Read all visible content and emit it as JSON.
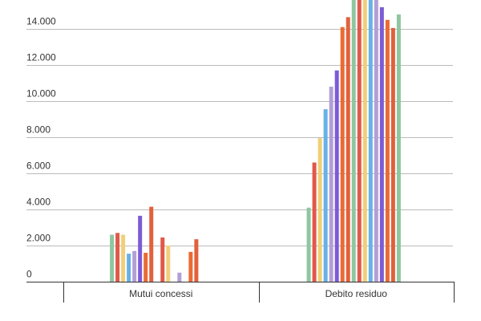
{
  "chart_data": {
    "type": "bar",
    "categories": [
      "Mutui concessi",
      "Debito residuo"
    ],
    "ylim": [
      0,
      15600
    ],
    "yticks": [
      0,
      2000,
      4000,
      6000,
      8000,
      10000,
      12000,
      14000
    ],
    "ytick_labels": [
      "0",
      "2.000",
      "4.000",
      "6.000",
      "8.000",
      "10.000",
      "12.000",
      "14.000"
    ],
    "grid": true,
    "legend": "none",
    "title": "",
    "xlabel": "",
    "ylabel": "",
    "colors": [
      "#8fc6a0",
      "#e0584a",
      "#f0cf79",
      "#67b1e6",
      "#b29fd6",
      "#7b5bd6",
      "#ea6a33",
      "#e2603c"
    ],
    "series": [
      {
        "values": [
          2600,
          4100
        ]
      },
      {
        "values": [
          2700,
          6600
        ]
      },
      {
        "values": [
          2600,
          7950
        ]
      },
      {
        "values": [
          1550,
          9550
        ]
      },
      {
        "values": [
          1700,
          10800
        ]
      },
      {
        "values": [
          3650,
          11700
        ]
      },
      {
        "values": [
          1600,
          14100
        ]
      },
      {
        "values": [
          4150,
          14650
        ]
      },
      {
        "values": [
          null,
          15600
        ]
      },
      {
        "values": [
          2450,
          15600
        ]
      },
      {
        "values": [
          2000,
          15600
        ]
      },
      {
        "values": [
          null,
          15600
        ]
      },
      {
        "values": [
          500,
          15600
        ]
      },
      {
        "values": [
          null,
          15200
        ]
      },
      {
        "values": [
          1650,
          14500
        ]
      },
      {
        "values": [
          2350,
          14050
        ]
      },
      {
        "values": [
          null,
          14800
        ]
      }
    ]
  }
}
